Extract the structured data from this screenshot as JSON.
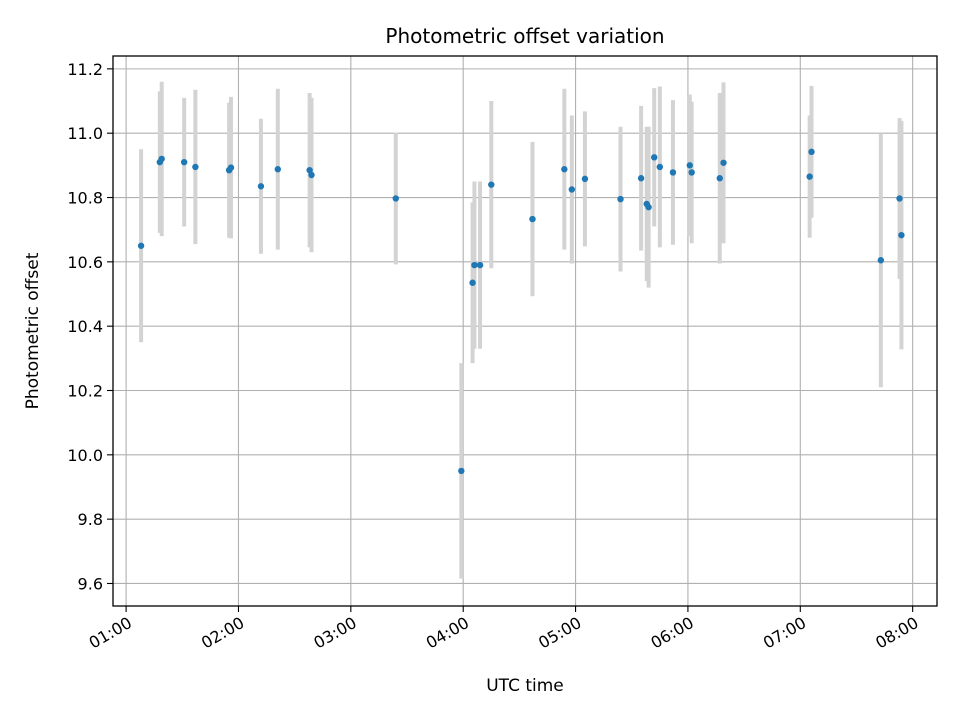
{
  "chart_data": {
    "type": "scatter",
    "title": "Photometric offset variation",
    "xlabel": "UTC time",
    "ylabel": "Photometric offset",
    "x_unit": "UTC time (HH:MM)",
    "xlim": [
      "00:53",
      "08:13"
    ],
    "ylim": [
      9.53,
      11.24
    ],
    "x_ticks": [
      "01:00",
      "02:00",
      "03:00",
      "04:00",
      "05:00",
      "06:00",
      "07:00",
      "08:00"
    ],
    "y_ticks": [
      "9.6",
      "9.8",
      "10.0",
      "10.2",
      "10.4",
      "10.6",
      "10.8",
      "11.0",
      "11.2"
    ],
    "grid": true,
    "legend": "none",
    "colors": {
      "point": "#1f77b4",
      "errorbar": "#d3d3d3",
      "grid": "#b0b0b0"
    },
    "series": [
      {
        "points": [
          {
            "x": "01:08",
            "y": 10.65,
            "yerr": 0.3
          },
          {
            "x": "01:18",
            "y": 10.91,
            "yerr": 0.22
          },
          {
            "x": "01:19",
            "y": 10.92,
            "yerr": 0.24
          },
          {
            "x": "01:31",
            "y": 10.91,
            "yerr": 0.2
          },
          {
            "x": "01:37",
            "y": 10.895,
            "yerr": 0.24
          },
          {
            "x": "01:55",
            "y": 10.885,
            "yerr": 0.21
          },
          {
            "x": "01:56",
            "y": 10.893,
            "yerr": 0.22
          },
          {
            "x": "02:12",
            "y": 10.835,
            "yerr": 0.21
          },
          {
            "x": "02:21",
            "y": 10.888,
            "yerr": 0.25
          },
          {
            "x": "02:38",
            "y": 10.885,
            "yerr": 0.24
          },
          {
            "x": "02:39",
            "y": 10.87,
            "yerr": 0.24
          },
          {
            "x": "03:24",
            "y": 10.797,
            "yerr": 0.205
          },
          {
            "x": "03:59",
            "y": 9.95,
            "yerr": 0.335
          },
          {
            "x": "04:05",
            "y": 10.535,
            "yerr": 0.25
          },
          {
            "x": "04:06",
            "y": 10.59,
            "yerr": 0.26
          },
          {
            "x": "04:09",
            "y": 10.59,
            "yerr": 0.26
          },
          {
            "x": "04:15",
            "y": 10.84,
            "yerr": 0.26
          },
          {
            "x": "04:37",
            "y": 10.733,
            "yerr": 0.24
          },
          {
            "x": "04:54",
            "y": 10.888,
            "yerr": 0.25
          },
          {
            "x": "04:58",
            "y": 10.825,
            "yerr": 0.23
          },
          {
            "x": "05:05",
            "y": 10.858,
            "yerr": 0.21
          },
          {
            "x": "05:24",
            "y": 10.795,
            "yerr": 0.225
          },
          {
            "x": "05:35",
            "y": 10.86,
            "yerr": 0.225
          },
          {
            "x": "05:38",
            "y": 10.78,
            "yerr": 0.24
          },
          {
            "x": "05:39",
            "y": 10.77,
            "yerr": 0.25
          },
          {
            "x": "05:42",
            "y": 10.925,
            "yerr": 0.215
          },
          {
            "x": "05:45",
            "y": 10.895,
            "yerr": 0.25
          },
          {
            "x": "05:52",
            "y": 10.878,
            "yerr": 0.225
          },
          {
            "x": "06:01",
            "y": 10.9,
            "yerr": 0.22
          },
          {
            "x": "06:02",
            "y": 10.878,
            "yerr": 0.22
          },
          {
            "x": "06:17",
            "y": 10.86,
            "yerr": 0.265
          },
          {
            "x": "06:19",
            "y": 10.908,
            "yerr": 0.25
          },
          {
            "x": "07:05",
            "y": 10.865,
            "yerr": 0.19
          },
          {
            "x": "07:06",
            "y": 10.942,
            "yerr": 0.205
          },
          {
            "x": "07:43",
            "y": 10.605,
            "yerr": 0.395
          },
          {
            "x": "07:53",
            "y": 10.797,
            "yerr": 0.25
          },
          {
            "x": "07:54",
            "y": 10.683,
            "yerr": 0.355
          }
        ]
      }
    ]
  }
}
